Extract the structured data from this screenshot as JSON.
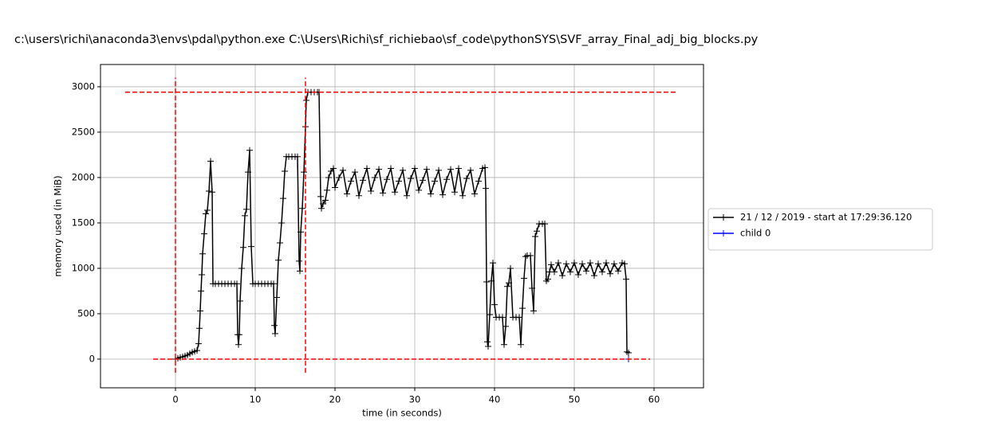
{
  "chart_data": {
    "type": "line",
    "title": "c:\\users\\richi\\anaconda3\\envs\\pdal\\python.exe C:\\Users\\Richi\\sf_richiebao\\sf_code\\pythonSYS\\SVF_array_Final_adj_big_blocks.py",
    "xlabel": "time (in seconds)",
    "ylabel": "memory used (in MiB)",
    "xlim": [
      -9.4,
      66.2
    ],
    "ylim": [
      -316,
      3245
    ],
    "xticks": [
      0,
      10,
      20,
      30,
      40,
      50,
      60
    ],
    "yticks": [
      0,
      500,
      1000,
      1500,
      2000,
      2500,
      3000
    ],
    "grid": true,
    "legend": "right",
    "series": [
      {
        "name": "21 / 12 / 2019 - start at 17:29:36.120",
        "color": "#000000",
        "x": [
          0,
          0.3,
          0.6,
          0.9,
          1.2,
          1.5,
          1.8,
          2.1,
          2.4,
          2.7,
          2.9,
          3.0,
          3.1,
          3.2,
          3.3,
          3.4,
          3.6,
          3.8,
          4.0,
          4.2,
          4.4,
          4.6,
          4.7,
          5.0,
          5.4,
          5.8,
          6.2,
          6.6,
          7.0,
          7.4,
          7.7,
          7.8,
          7.9,
          8.0,
          8.1,
          8.3,
          8.5,
          8.7,
          8.9,
          9.1,
          9.3,
          9.5,
          9.7,
          10.0,
          10.4,
          10.8,
          11.2,
          11.6,
          12.0,
          12.3,
          12.4,
          12.5,
          12.7,
          12.9,
          13.1,
          13.3,
          13.5,
          13.7,
          13.9,
          14.2,
          14.6,
          15.0,
          15.3,
          15.5,
          15.6,
          15.7,
          15.9,
          16.1,
          16.3,
          16.4,
          16.6,
          17.0,
          17.4,
          17.8,
          18.0,
          18.2,
          18.3,
          18.5,
          18.8,
          19.0,
          19.2,
          19.5,
          19.8,
          20.0,
          20.5,
          21.0,
          21.5,
          22.0,
          22.5,
          23.0,
          23.5,
          24.0,
          24.5,
          25.0,
          25.5,
          26.0,
          26.5,
          27.0,
          27.5,
          28.0,
          28.5,
          29.0,
          29.5,
          30.0,
          30.5,
          31.0,
          31.5,
          32.0,
          32.5,
          33.0,
          33.5,
          34.0,
          34.5,
          35.0,
          35.5,
          36.0,
          36.5,
          37.0,
          37.5,
          38.0,
          38.5,
          38.8,
          38.9,
          39.0,
          39.1,
          39.2,
          39.4,
          39.6,
          39.8,
          40.0,
          40.2,
          40.6,
          41.0,
          41.2,
          41.4,
          41.6,
          41.8,
          42.0,
          42.3,
          42.7,
          43.1,
          43.3,
          43.5,
          43.7,
          43.9,
          44.1,
          44.5,
          44.7,
          44.9,
          45.1,
          45.3,
          45.6,
          46.0,
          46.3,
          46.5,
          46.7,
          46.9,
          47.1,
          47.5,
          48.0,
          48.5,
          49.0,
          49.5,
          50.0,
          50.5,
          51.0,
          51.5,
          52.0,
          52.5,
          53.0,
          53.5,
          54.0,
          54.5,
          55.0,
          55.5,
          56.0,
          56.3,
          56.5,
          56.6,
          56.8
        ],
        "values": [
          0,
          10,
          20,
          25,
          35,
          45,
          60,
          75,
          85,
          95,
          170,
          340,
          530,
          750,
          930,
          1160,
          1380,
          1600,
          1640,
          1850,
          2180,
          1840,
          830,
          830,
          830,
          830,
          830,
          830,
          830,
          830,
          830,
          270,
          160,
          270,
          640,
          1000,
          1230,
          1580,
          1650,
          2060,
          2300,
          1240,
          830,
          830,
          830,
          830,
          830,
          830,
          830,
          830,
          370,
          280,
          680,
          1090,
          1280,
          1500,
          1770,
          2070,
          2230,
          2230,
          2230,
          2230,
          2230,
          1080,
          970,
          1400,
          1660,
          2060,
          2560,
          2850,
          2940,
          2940,
          2940,
          2940,
          2940,
          1790,
          1660,
          1710,
          1750,
          1860,
          2000,
          2070,
          2100,
          1890,
          2000,
          2080,
          1820,
          1960,
          2060,
          1800,
          1970,
          2100,
          1850,
          2000,
          2090,
          1830,
          1980,
          2100,
          1840,
          1960,
          2080,
          1800,
          1990,
          2100,
          1860,
          1970,
          2090,
          1820,
          1960,
          2080,
          1810,
          1980,
          2090,
          1840,
          2100,
          1800,
          1990,
          2080,
          1820,
          1960,
          2100,
          2110,
          1880,
          850,
          190,
          140,
          490,
          860,
          1060,
          600,
          460,
          460,
          460,
          160,
          360,
          800,
          840,
          1000,
          460,
          460,
          460,
          160,
          560,
          890,
          1130,
          1140,
          1140,
          780,
          530,
          1350,
          1410,
          1490,
          1490,
          1490,
          860,
          880,
          960,
          1040,
          960,
          1060,
          920,
          1050,
          960,
          1060,
          930,
          1050,
          970,
          1060,
          920,
          1050,
          960,
          1060,
          940,
          1050,
          970,
          1060,
          1050,
          880,
          80,
          70
        ]
      },
      {
        "name": "child 0",
        "color": "#0000ff",
        "x": [
          56.8
        ],
        "values": [
          0
        ]
      }
    ],
    "reference_color": "#ff0000",
    "reference_lines": [
      {
        "orientation": "horizontal",
        "value": 2940,
        "from": -6.3,
        "to": 62.8
      },
      {
        "orientation": "horizontal",
        "value": 0,
        "from": -2.8,
        "to": 59.5
      },
      {
        "orientation": "vertical",
        "value": 0,
        "from": -150,
        "to": 3100
      },
      {
        "orientation": "vertical",
        "value": 16.3,
        "from": -150,
        "to": 3100
      }
    ]
  }
}
